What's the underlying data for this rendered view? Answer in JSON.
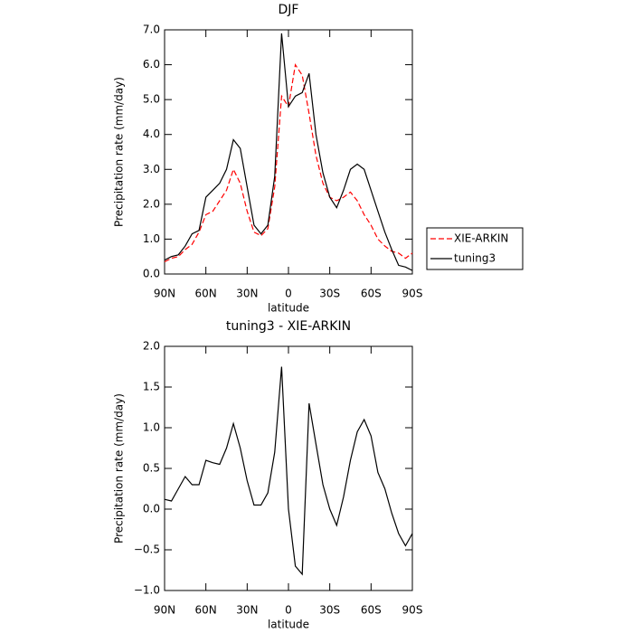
{
  "chart_data": [
    {
      "type": "line",
      "title": "DJF",
      "xlabel": "latitude",
      "ylabel": "Precipitation rate (mm/day)",
      "x": [
        90,
        85,
        80,
        75,
        70,
        65,
        60,
        55,
        50,
        45,
        40,
        35,
        30,
        25,
        20,
        15,
        10,
        5,
        0,
        -5,
        -10,
        -15,
        -20,
        -25,
        -30,
        -35,
        -40,
        -45,
        -50,
        -55,
        -60,
        -65,
        -70,
        -75,
        -80,
        -85,
        -90
      ],
      "series": [
        {
          "name": "XIE-ARKIN",
          "color": "#ff0000",
          "linestyle": "dashed",
          "values": [
            0.35,
            0.45,
            0.5,
            0.7,
            0.85,
            1.2,
            1.7,
            1.8,
            2.1,
            2.4,
            3.0,
            2.6,
            1.8,
            1.2,
            1.1,
            1.3,
            2.5,
            5.1,
            4.8,
            6.0,
            5.7,
            4.6,
            3.4,
            2.6,
            2.2,
            2.1,
            2.2,
            2.35,
            2.1,
            1.7,
            1.4,
            1.0,
            0.8,
            0.65,
            0.6,
            0.45,
            0.6
          ]
        },
        {
          "name": "tuning3",
          "color": "#000000",
          "linestyle": "solid",
          "values": [
            0.4,
            0.5,
            0.55,
            0.8,
            1.15,
            1.25,
            2.2,
            2.4,
            2.6,
            3.0,
            3.85,
            3.6,
            2.5,
            1.4,
            1.15,
            1.4,
            2.8,
            6.9,
            4.8,
            5.1,
            5.2,
            5.75,
            4.0,
            2.9,
            2.2,
            1.9,
            2.4,
            3.0,
            3.15,
            3.0,
            2.4,
            1.8,
            1.2,
            0.7,
            0.25,
            0.2,
            0.1
          ]
        }
      ],
      "xlim": [
        90,
        -90
      ],
      "xticks": [
        {
          "value": 90,
          "label": "90N"
        },
        {
          "value": 60,
          "label": "60N"
        },
        {
          "value": 30,
          "label": "30N"
        },
        0,
        {
          "value": -30,
          "label": "30S"
        },
        {
          "value": -60,
          "label": "60S"
        },
        {
          "value": -90,
          "label": "90S"
        }
      ],
      "ylim": [
        0,
        7
      ],
      "yticks": [
        {
          "value": 0,
          "label": "0.0"
        },
        {
          "value": 1,
          "label": "1.0"
        },
        {
          "value": 2,
          "label": "2.0"
        },
        {
          "value": 3,
          "label": "3.0"
        },
        {
          "value": 4,
          "label": "4.0"
        },
        {
          "value": 5,
          "label": "5.0"
        },
        {
          "value": 6,
          "label": "6.0"
        },
        {
          "value": 7,
          "label": "7.0"
        }
      ],
      "legend": "right"
    },
    {
      "type": "line",
      "title": "tuning3 - XIE-ARKIN",
      "xlabel": "latitude",
      "ylabel": "Precipitation rate (mm/day)",
      "x": [
        90,
        85,
        80,
        75,
        70,
        65,
        60,
        55,
        50,
        45,
        40,
        35,
        30,
        25,
        20,
        15,
        10,
        5,
        0,
        -5,
        -10,
        -15,
        -20,
        -25,
        -30,
        -35,
        -40,
        -45,
        -50,
        -55,
        -60,
        -65,
        -70,
        -75,
        -80,
        -85,
        -90
      ],
      "color": "#000000",
      "values": [
        0.12,
        0.1,
        0.25,
        0.4,
        0.3,
        0.3,
        0.6,
        0.57,
        0.55,
        0.75,
        1.05,
        0.75,
        0.35,
        0.05,
        0.05,
        0.2,
        0.7,
        1.75,
        0.0,
        -0.7,
        -0.8,
        1.3,
        0.8,
        0.3,
        0.0,
        -0.2,
        0.15,
        0.6,
        0.95,
        1.1,
        0.9,
        0.45,
        0.25,
        -0.05,
        -0.3,
        -0.45,
        -0.3
      ],
      "xlim": [
        90,
        -90
      ],
      "xticks": [
        {
          "value": 90,
          "label": "90N"
        },
        {
          "value": 60,
          "label": "60N"
        },
        {
          "value": 30,
          "label": "30N"
        },
        0,
        {
          "value": -30,
          "label": "30S"
        },
        {
          "value": -60,
          "label": "60S"
        },
        {
          "value": -90,
          "label": "90S"
        }
      ],
      "ylim": [
        -1,
        2
      ],
      "yticks": [
        {
          "value": -1,
          "label": "−1.0"
        },
        {
          "value": -0.5,
          "label": "−0.5"
        },
        {
          "value": 0,
          "label": "0.0"
        },
        {
          "value": 0.5,
          "label": "0.5"
        },
        {
          "value": 1,
          "label": "1.0"
        },
        {
          "value": 1.5,
          "label": "1.5"
        },
        {
          "value": 2,
          "label": "2.0"
        }
      ]
    }
  ]
}
